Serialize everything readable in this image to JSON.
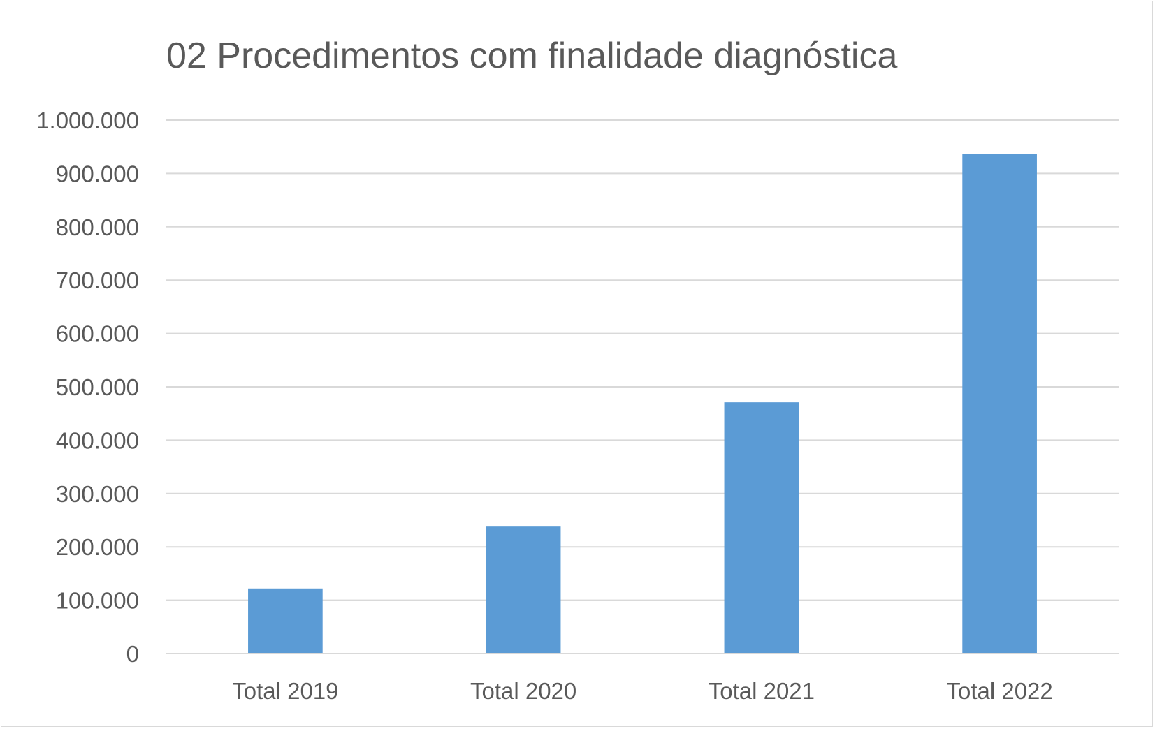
{
  "chart_data": {
    "type": "bar",
    "title": "02 Procedimentos com finalidade diagnóstica",
    "categories": [
      "Total 2019",
      "Total 2020",
      "Total 2021",
      "Total 2022"
    ],
    "values": [
      122000,
      238000,
      471000,
      937000
    ],
    "xlabel": "",
    "ylabel": "",
    "ylim": [
      0,
      1000000
    ],
    "yticks": [
      0,
      100000,
      200000,
      300000,
      400000,
      500000,
      600000,
      700000,
      800000,
      900000,
      1000000
    ],
    "ytick_labels": [
      "0",
      "100.000",
      "200.000",
      "300.000",
      "400.000",
      "500.000",
      "600.000",
      "700.000",
      "800.000",
      "900.000",
      "1.000.000"
    ],
    "grid": true,
    "legend": false,
    "bar_color": "#5b9bd5"
  }
}
